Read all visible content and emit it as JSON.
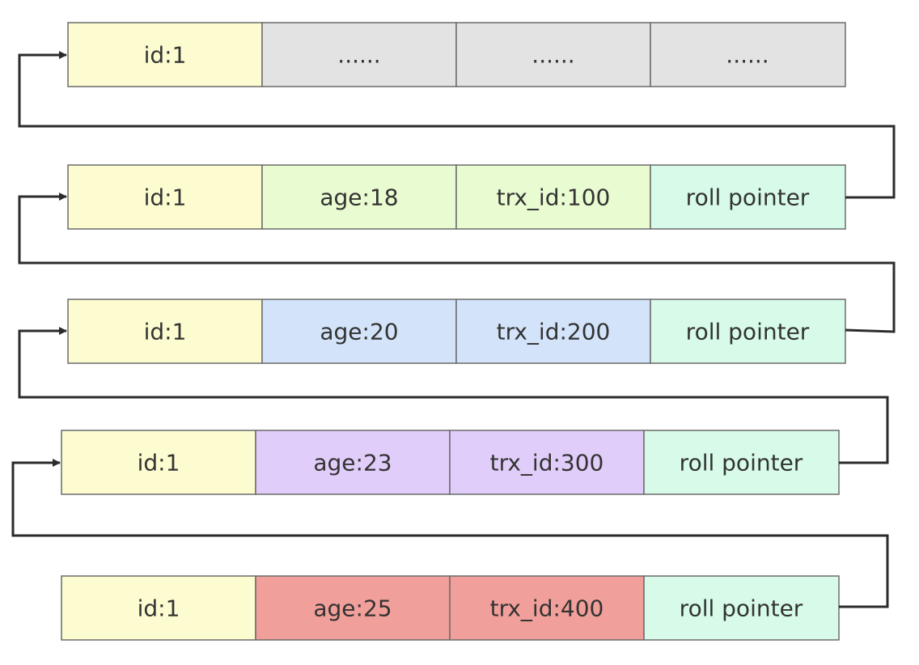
{
  "rows": [
    {
      "cells": [
        "id:1",
        "......",
        "......",
        "......"
      ]
    },
    {
      "cells": [
        "id:1",
        "age:18",
        "trx_id:100",
        "roll pointer"
      ]
    },
    {
      "cells": [
        "id:1",
        "age:20",
        "trx_id:200",
        "roll pointer"
      ]
    },
    {
      "cells": [
        "id:1",
        "age:23",
        "trx_id:300",
        "roll pointer"
      ]
    },
    {
      "cells": [
        "id:1",
        "age:25",
        "trx_id:400",
        "roll pointer"
      ]
    }
  ]
}
